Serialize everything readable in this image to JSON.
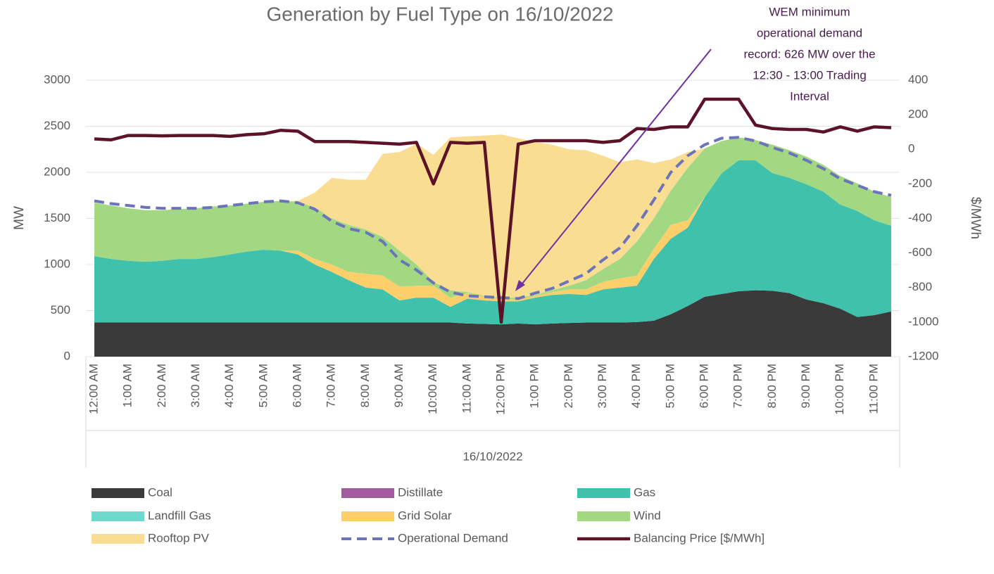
{
  "chart_data": {
    "type": "stacked-area",
    "title": "Generation by Fuel Type on 16/10/2022",
    "x_label": "16/10/2022",
    "y_label": "MW",
    "y2_label": "$/MWh",
    "annotation": [
      "WEM minimum",
      "operational demand",
      "record: 626 MW over the",
      "12:30 - 13:00 Trading",
      "Interval"
    ],
    "categories": [
      "12:00 AM",
      null,
      "1:00 AM",
      null,
      "2:00 AM",
      null,
      "3:00 AM",
      null,
      "4:00 AM",
      null,
      "5:00 AM",
      null,
      "6:00 AM",
      null,
      "7:00 AM",
      null,
      "8:00 AM",
      null,
      "9:00 AM",
      null,
      "10:00 AM",
      null,
      "11:00 AM",
      null,
      "12:00 PM",
      null,
      "1:00 PM",
      null,
      "2:00 PM",
      null,
      "3:00 PM",
      null,
      "4:00 PM",
      null,
      "5:00 PM",
      null,
      "6:00 PM",
      null,
      "7:00 PM",
      null,
      "8:00 PM",
      null,
      "9:00 PM",
      null,
      "10:00 PM",
      null,
      "11:00 PM",
      null
    ],
    "ylim": [
      0,
      3000
    ],
    "yticks": [
      0,
      500,
      1000,
      1500,
      2000,
      2500,
      3000
    ],
    "y2lim": [
      -1200,
      400
    ],
    "y2ticks": [
      -1200,
      -1000,
      -800,
      -600,
      -400,
      -200,
      0,
      200,
      400
    ],
    "grid": true,
    "series": [
      {
        "name": "Coal",
        "kind": "area",
        "color": "#3a3a3a",
        "values": [
          370,
          370,
          370,
          370,
          370,
          370,
          370,
          370,
          370,
          370,
          370,
          370,
          370,
          370,
          370,
          370,
          370,
          370,
          370,
          370,
          370,
          370,
          360,
          355,
          350,
          360,
          350,
          360,
          365,
          370,
          370,
          370,
          375,
          390,
          460,
          550,
          650,
          680,
          710,
          720,
          715,
          690,
          620,
          580,
          520,
          430,
          450,
          490
        ]
      },
      {
        "name": "Distillate",
        "kind": "area",
        "color": "#a35a9e",
        "values": [
          0,
          0,
          0,
          0,
          0,
          0,
          0,
          0,
          0,
          0,
          0,
          0,
          0,
          0,
          0,
          0,
          0,
          0,
          0,
          0,
          0,
          0,
          0,
          0,
          0,
          0,
          0,
          0,
          0,
          0,
          0,
          0,
          0,
          0,
          0,
          0,
          0,
          0,
          0,
          0,
          0,
          0,
          0,
          0,
          0,
          0,
          0,
          0
        ]
      },
      {
        "name": "Gas",
        "kind": "area",
        "color": "#3fc1ab",
        "values": [
          720,
          690,
          670,
          660,
          670,
          690,
          690,
          710,
          740,
          770,
          790,
          780,
          740,
          630,
          550,
          460,
          380,
          360,
          240,
          270,
          270,
          170,
          270,
          255,
          250,
          240,
          290,
          310,
          315,
          300,
          360,
          380,
          395,
          670,
          820,
          850,
          1080,
          1310,
          1420,
          1410,
          1275,
          1250,
          1250,
          1210,
          1130,
          1150,
          1030,
          930
        ]
      },
      {
        "name": "Landfill Gas",
        "kind": "area",
        "color": "#6ed8cc",
        "values": [
          0,
          0,
          0,
          0,
          0,
          0,
          0,
          0,
          0,
          0,
          0,
          0,
          0,
          0,
          0,
          0,
          0,
          0,
          0,
          0,
          0,
          0,
          0,
          0,
          0,
          0,
          0,
          0,
          0,
          0,
          0,
          0,
          0,
          0,
          0,
          0,
          0,
          0,
          0,
          0,
          0,
          0,
          0,
          0,
          0,
          0,
          0,
          0
        ]
      },
      {
        "name": "Grid Solar",
        "kind": "area",
        "color": "#fccf6a",
        "values": [
          0,
          0,
          0,
          0,
          0,
          0,
          0,
          0,
          0,
          0,
          0,
          0,
          40,
          60,
          80,
          90,
          150,
          150,
          150,
          130,
          130,
          100,
          60,
          40,
          30,
          20,
          20,
          30,
          50,
          60,
          80,
          100,
          110,
          110,
          150,
          80,
          0,
          0,
          0,
          0,
          0,
          0,
          0,
          0,
          0,
          0,
          0,
          0
        ]
      },
      {
        "name": "Wind",
        "kind": "area",
        "color": "#a2d882",
        "values": [
          580,
          580,
          570,
          560,
          550,
          540,
          550,
          550,
          530,
          520,
          520,
          540,
          530,
          560,
          500,
          510,
          480,
          420,
          390,
          230,
          40,
          80,
          10,
          10,
          10,
          20,
          10,
          20,
          40,
          100,
          140,
          210,
          370,
          330,
          370,
          570,
          530,
          350,
          250,
          220,
          310,
          300,
          300,
          290,
          310,
          300,
          310,
          310
        ]
      },
      {
        "name": "Rooftop PV",
        "kind": "area",
        "color": "#f9dd92",
        "values": [
          0,
          0,
          0,
          0,
          0,
          0,
          0,
          0,
          0,
          0,
          0,
          0,
          10,
          160,
          440,
          490,
          540,
          900,
          1070,
          1310,
          1380,
          1660,
          1690,
          1740,
          1770,
          1730,
          1660,
          1580,
          1480,
          1410,
          1230,
          1050,
          890,
          600,
          340,
          170,
          0,
          0,
          0,
          0,
          0,
          0,
          0,
          0,
          0,
          0,
          0,
          0
        ]
      },
      {
        "name": "Operational Demand",
        "kind": "line",
        "dash": true,
        "color": "#6b74b8",
        "values": [
          1690,
          1660,
          1640,
          1620,
          1610,
          1610,
          1610,
          1620,
          1640,
          1660,
          1680,
          1690,
          1670,
          1600,
          1470,
          1390,
          1350,
          1250,
          1050,
          940,
          800,
          700,
          660,
          650,
          640,
          630,
          690,
          740,
          820,
          900,
          1050,
          1180,
          1420,
          1700,
          2000,
          2180,
          2300,
          2370,
          2380,
          2340,
          2270,
          2210,
          2130,
          2040,
          1930,
          1860,
          1790,
          1750
        ]
      },
      {
        "name": "Balancing Price [$/MWh]",
        "kind": "line",
        "axis": "y2",
        "color": "#5c1327",
        "values": [
          60,
          55,
          80,
          80,
          78,
          80,
          80,
          80,
          75,
          85,
          90,
          110,
          105,
          45,
          45,
          45,
          40,
          35,
          30,
          40,
          -200,
          40,
          35,
          40,
          -1000,
          30,
          50,
          50,
          50,
          50,
          40,
          50,
          120,
          115,
          130,
          130,
          290,
          290,
          290,
          140,
          120,
          115,
          115,
          100,
          130,
          105,
          130,
          125
        ]
      }
    ]
  }
}
